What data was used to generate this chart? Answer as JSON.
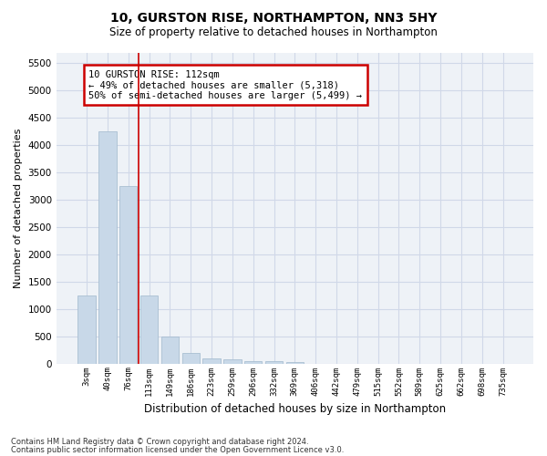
{
  "title": "10, GURSTON RISE, NORTHAMPTON, NN3 5HY",
  "subtitle": "Size of property relative to detached houses in Northampton",
  "xlabel": "Distribution of detached houses by size in Northampton",
  "ylabel": "Number of detached properties",
  "footer1": "Contains HM Land Registry data © Crown copyright and database right 2024.",
  "footer2": "Contains public sector information licensed under the Open Government Licence v3.0.",
  "bar_color": "#c8d8e8",
  "bar_edgecolor": "#a0b8cc",
  "grid_color": "#d0d8e8",
  "annotation_box_color": "#cc0000",
  "vline_color": "#cc0000",
  "bin_labels": [
    "3sqm",
    "40sqm",
    "76sqm",
    "113sqm",
    "149sqm",
    "186sqm",
    "223sqm",
    "259sqm",
    "296sqm",
    "332sqm",
    "369sqm",
    "406sqm",
    "442sqm",
    "479sqm",
    "515sqm",
    "552sqm",
    "589sqm",
    "625sqm",
    "662sqm",
    "698sqm",
    "735sqm"
  ],
  "bar_values": [
    1250,
    4250,
    3250,
    1250,
    500,
    200,
    100,
    75,
    50,
    50,
    30,
    0,
    0,
    0,
    0,
    0,
    0,
    0,
    0,
    0,
    0
  ],
  "ylim": [
    0,
    5700
  ],
  "yticks": [
    0,
    500,
    1000,
    1500,
    2000,
    2500,
    3000,
    3500,
    4000,
    4500,
    5000,
    5500
  ],
  "vline_position": 2.5,
  "annotation_text": "10 GURSTON RISE: 112sqm\n← 49% of detached houses are smaller (5,318)\n50% of semi-detached houses are larger (5,499) →",
  "background_color": "#eef2f7"
}
